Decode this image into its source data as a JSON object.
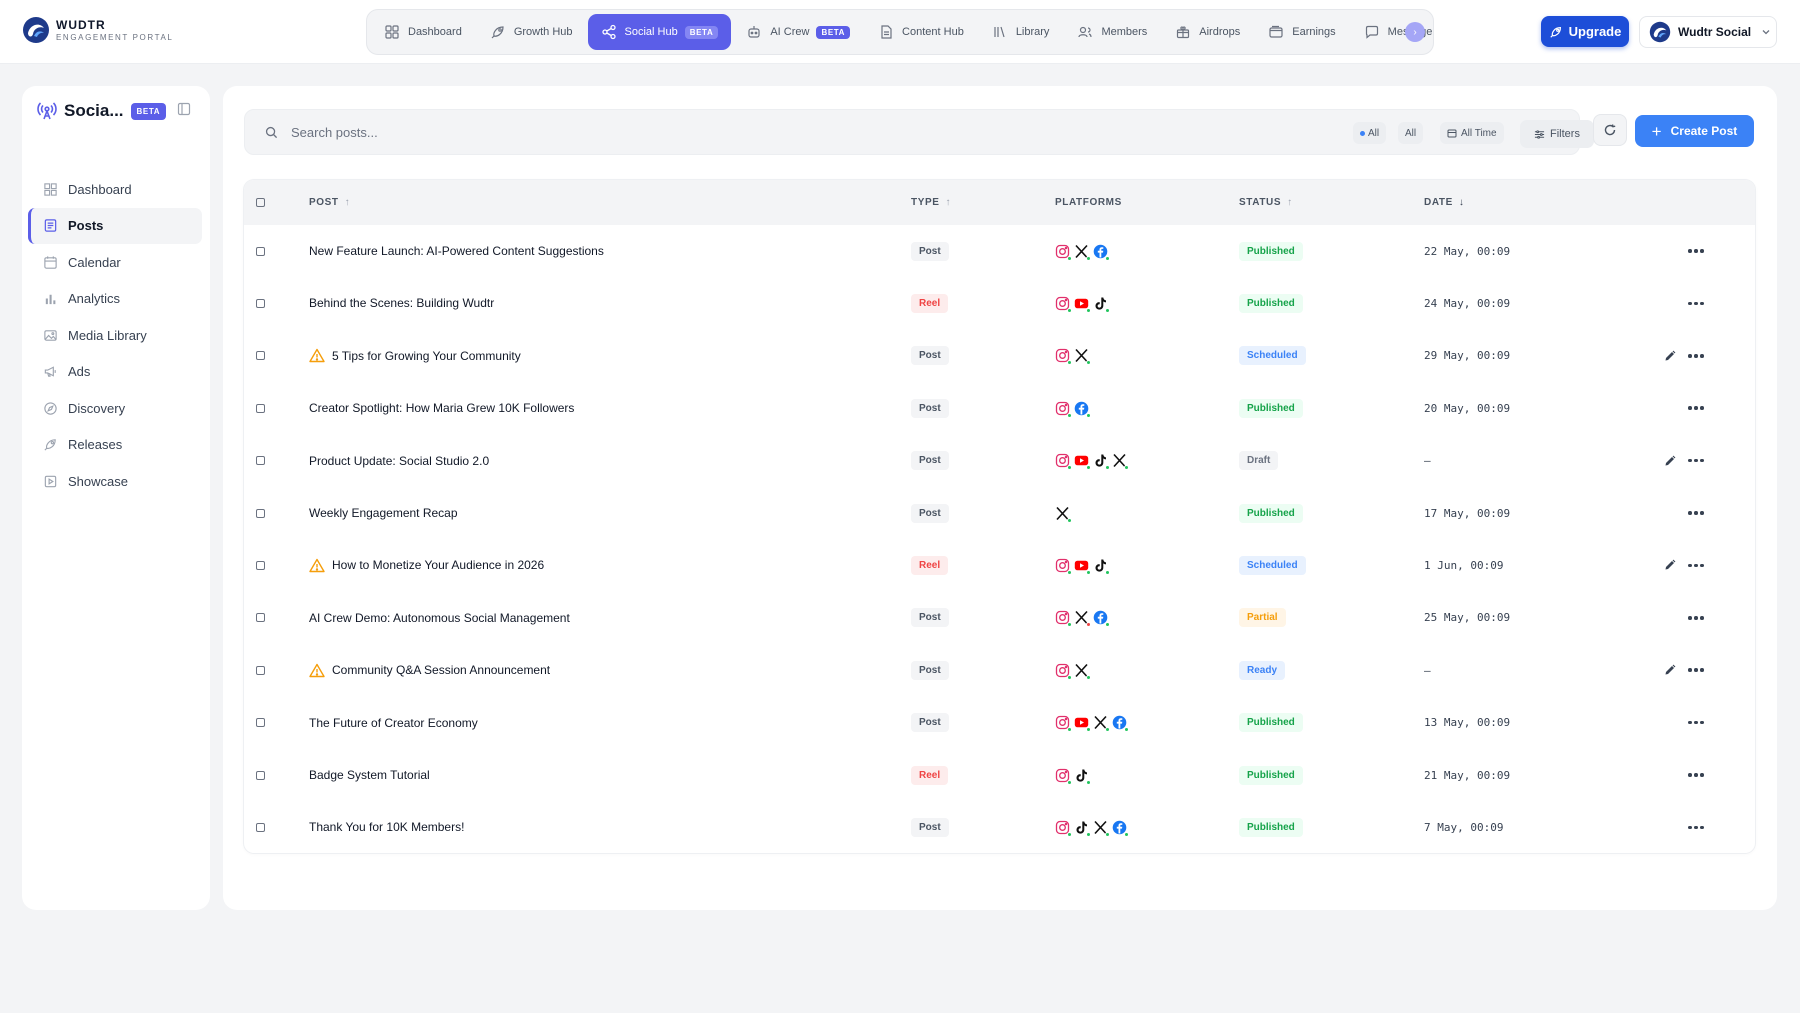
{
  "brand": {
    "name": "WUDTR",
    "subtitle": "ENGAGEMENT PORTAL"
  },
  "nav": [
    {
      "label": "Dashboard",
      "icon": "dashboard-icon"
    },
    {
      "label": "Growth Hub",
      "icon": "rocket-icon"
    },
    {
      "label": "Social Hub",
      "icon": "share-icon",
      "badge": "BETA",
      "active": true
    },
    {
      "label": "AI Crew",
      "icon": "robot-icon",
      "badge": "BETA"
    },
    {
      "label": "Content Hub",
      "icon": "document-icon"
    },
    {
      "label": "Library",
      "icon": "library-icon"
    },
    {
      "label": "Members",
      "icon": "members-icon"
    },
    {
      "label": "Airdrops",
      "icon": "gift-icon"
    },
    {
      "label": "Earnings",
      "icon": "wallet-icon"
    },
    {
      "label": "Message",
      "icon": "chat-icon"
    }
  ],
  "header": {
    "upgrade_label": "Upgrade",
    "account_label": "Wudtr Social"
  },
  "sidebar": {
    "title": "Socia...",
    "badge": "BETA",
    "items": [
      {
        "label": "Dashboard",
        "icon": "grid-icon"
      },
      {
        "label": "Posts",
        "icon": "posts-icon",
        "active": true
      },
      {
        "label": "Calendar",
        "icon": "calendar-icon"
      },
      {
        "label": "Analytics",
        "icon": "bar-chart-icon"
      },
      {
        "label": "Media Library",
        "icon": "image-icon"
      },
      {
        "label": "Ads",
        "icon": "megaphone-icon"
      },
      {
        "label": "Discovery",
        "icon": "compass-icon"
      },
      {
        "label": "Releases",
        "icon": "rocket-icon"
      },
      {
        "label": "Showcase",
        "icon": "showcase-icon"
      }
    ]
  },
  "toolbar": {
    "search_placeholder": "Search posts...",
    "chip_status": "All",
    "chip_type": "All",
    "chip_time": "All Time",
    "filters_label": "Filters",
    "create_label": "Create Post"
  },
  "table": {
    "headers": {
      "post": "POST",
      "type": "TYPE",
      "platforms": "PLATFORMS",
      "status": "STATUS",
      "date": "DATE"
    },
    "rows": [
      {
        "title": "New Feature Launch: AI-Powered Content Suggestions",
        "warning": false,
        "type": "Post",
        "platforms": [
          "instagram",
          "x",
          "facebook"
        ],
        "status": "Published",
        "date": "22 May, 00:09",
        "editable": false
      },
      {
        "title": "Behind the Scenes: Building Wudtr",
        "warning": false,
        "type": "Reel",
        "platforms": [
          "instagram",
          "youtube",
          "tiktok"
        ],
        "status": "Published",
        "date": "24 May, 00:09",
        "editable": false
      },
      {
        "title": "5 Tips for Growing Your Community",
        "warning": true,
        "type": "Post",
        "platforms": [
          "instagram",
          "x"
        ],
        "status": "Scheduled",
        "date": "29 May, 00:09",
        "editable": true
      },
      {
        "title": "Creator Spotlight: How Maria Grew 10K Followers",
        "warning": false,
        "type": "Post",
        "platforms": [
          "instagram",
          "facebook"
        ],
        "status": "Published",
        "date": "20 May, 00:09",
        "editable": false
      },
      {
        "title": "Product Update: Social Studio 2.0",
        "warning": false,
        "type": "Post",
        "platforms": [
          "instagram",
          "youtube",
          "tiktok",
          "x"
        ],
        "status": "Draft",
        "date": "–",
        "editable": true
      },
      {
        "title": "Weekly Engagement Recap",
        "warning": false,
        "type": "Post",
        "platforms": [
          "x"
        ],
        "status": "Published",
        "date": "17 May, 00:09",
        "editable": false
      },
      {
        "title": "How to Monetize Your Audience in 2026",
        "warning": true,
        "type": "Reel",
        "platforms": [
          "instagram",
          "youtube",
          "tiktok"
        ],
        "status": "Scheduled",
        "date": "1 Jun, 00:09",
        "editable": true
      },
      {
        "title": "AI Crew Demo: Autonomous Social Management",
        "warning": false,
        "type": "Post",
        "platforms": [
          "instagram",
          "x",
          "facebook"
        ],
        "status": "Partial",
        "date": "25 May, 00:09",
        "editable": false
      },
      {
        "title": "Community Q&A Session Announcement",
        "warning": true,
        "type": "Post",
        "platforms": [
          "instagram",
          "x"
        ],
        "status": "Ready",
        "date": "–",
        "editable": true
      },
      {
        "title": "The Future of Creator Economy",
        "warning": false,
        "type": "Post",
        "platforms": [
          "instagram",
          "youtube",
          "x",
          "facebook"
        ],
        "status": "Published",
        "date": "13 May, 00:09",
        "editable": false
      },
      {
        "title": "Badge System Tutorial",
        "warning": false,
        "type": "Reel",
        "platforms": [
          "instagram",
          "tiktok"
        ],
        "status": "Published",
        "date": "21 May, 00:09",
        "editable": false
      },
      {
        "title": "Thank You for 10K Members!",
        "warning": false,
        "type": "Post",
        "platforms": [
          "instagram",
          "tiktok",
          "x",
          "facebook"
        ],
        "status": "Published",
        "date": "7 May, 00:09",
        "editable": false
      }
    ]
  },
  "colors": {
    "accent": "#5b5ee8",
    "primary": "#3b82f6",
    "upgrade": "#1d4ed8",
    "published": "#16a34a",
    "scheduled": "#3b82f6",
    "partial": "#f59e0b",
    "reel": "#ef4444"
  }
}
